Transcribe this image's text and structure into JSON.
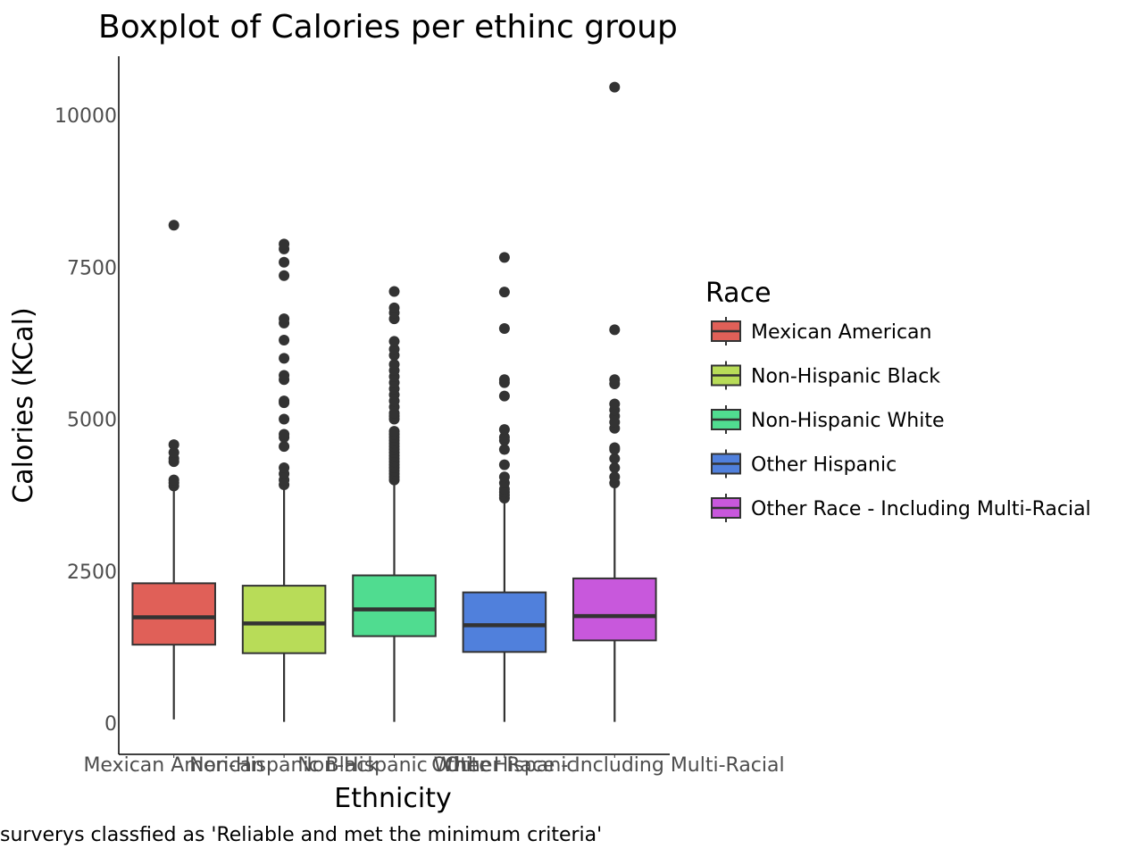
{
  "chart_data": {
    "type": "boxplot",
    "title": "Boxplot of Calories per ethinc group",
    "xlabel": "Ethnicity",
    "ylabel": "Calories (KCal)",
    "caption": "surverys classfied as 'Reliable and met the minimum criteria'",
    "ylim": [
      -530,
      11000
    ],
    "yticks": [
      0,
      2500,
      5000,
      7500,
      10000
    ],
    "grid": false,
    "legend": {
      "title": "Race",
      "position": "right"
    },
    "categories": [
      "Mexican American",
      "Non-Hispanic Black",
      "Non-Hispanic White",
      "Other Hispanic",
      "Other Race - Including Multi-Racial"
    ],
    "colors": [
      "#e06058",
      "#b8dc58",
      "#50dc90",
      "#5080dc",
      "#c858dc"
    ],
    "series": [
      {
        "name": "Mexican American",
        "whisker_low": 60,
        "q1": 1290,
        "median": 1740,
        "q3": 2300,
        "whisker_high": 3880,
        "outliers": [
          3900,
          3950,
          4000,
          4300,
          4350,
          4450,
          4580,
          8190
        ]
      },
      {
        "name": "Non-Hispanic Black",
        "whisker_low": 20,
        "q1": 1150,
        "median": 1640,
        "q3": 2260,
        "whisker_high": 3900,
        "outliers": [
          3920,
          4000,
          4100,
          4200,
          4550,
          4700,
          4750,
          5000,
          5270,
          5300,
          5650,
          5720,
          6000,
          6300,
          6580,
          6650,
          7360,
          7580,
          7800,
          7880
        ]
      },
      {
        "name": "Non-Hispanic White",
        "whisker_low": 20,
        "q1": 1430,
        "median": 1870,
        "q3": 2430,
        "whisker_high": 3980,
        "outliers": [
          4000,
          4050,
          4100,
          4150,
          4200,
          4250,
          4300,
          4350,
          4400,
          4450,
          4500,
          4550,
          4600,
          4650,
          4700,
          4750,
          4800,
          5000,
          5050,
          5100,
          5200,
          5300,
          5400,
          5500,
          5600,
          5700,
          5800,
          5900,
          6050,
          6150,
          6280,
          6650,
          6750,
          6830,
          7100
        ]
      },
      {
        "name": "Other Hispanic",
        "whisker_low": 20,
        "q1": 1170,
        "median": 1610,
        "q3": 2150,
        "whisker_high": 3660,
        "outliers": [
          3700,
          3750,
          3800,
          3850,
          3950,
          4050,
          4250,
          4500,
          4650,
          4700,
          4830,
          5380,
          5600,
          5650,
          6490,
          7090,
          7660
        ]
      },
      {
        "name": "Other Race - Including Multi-Racial",
        "whisker_low": 20,
        "q1": 1360,
        "median": 1760,
        "q3": 2380,
        "whisker_high": 3900,
        "outliers": [
          3950,
          4050,
          4200,
          4350,
          4500,
          4530,
          4850,
          4950,
          5050,
          5150,
          5250,
          5580,
          5650,
          6470,
          10460
        ]
      }
    ]
  }
}
